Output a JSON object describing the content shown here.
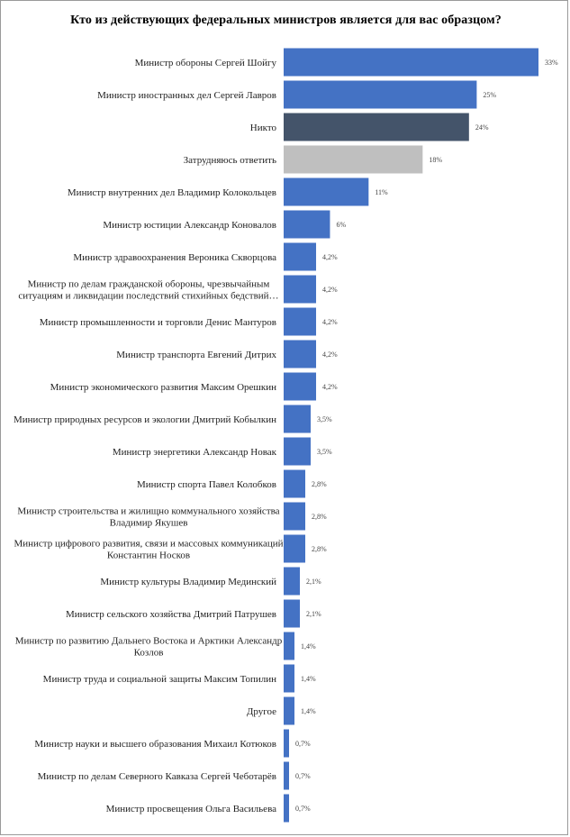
{
  "chart_data": {
    "type": "bar",
    "orientation": "horizontal",
    "title": "Кто из действующих федеральных министров является для вас образцом?",
    "xlabel": "",
    "ylabel": "",
    "xlim": [
      0,
      33
    ],
    "grid": false,
    "legend": "none",
    "colors": {
      "default": "#4472C4",
      "Никто": "#44546A",
      "Затрудняюсь ответить": "#BFBFBF"
    },
    "categories": [
      "Министр обороны Сергей Шойгу",
      "Министр иностранных дел Сергей Лавров",
      "Никто",
      "Затрудняюсь ответить",
      "Министр внутренних дел Владимир Колокольцев",
      "Министр юстиции Александр Коновалов",
      "Министр здравоохранения Вероника Скворцова",
      [
        "Министр по делам гражданской обороны, чрезвычайным",
        "ситуациям и ликвидации последствий стихийных бедствий…"
      ],
      "Министр промышленности и торговли Денис Мантуров",
      "Министр транспорта Евгений Дитрих",
      "Министр экономического развития Максим Орешкин",
      "Министр природных ресурсов и экологии Дмитрий Кобылкин",
      "Министр энергетики Александр Новак",
      "Министр спорта Павел Колобков",
      [
        "Министр строительства и жилищно коммунального хозяйства",
        "Владимир Якушев"
      ],
      [
        "Министр цифрового развития, связи и массовых коммуникаций",
        "Константин Носков"
      ],
      "Министр культуры Владимир Мединский",
      "Министр сельского хозяйства Дмитрий Патрушев",
      [
        "Министр по развитию Дальнего Востока и Арктики Александр",
        "Козлов"
      ],
      "Министр труда и социальной защиты Максим Топилин",
      "Другое",
      "Министр науки и высшего образования Михаил Котюков",
      "Министр по делам Северного Кавказа Сергей Чеботарёв",
      "Министр просвещения Ольга Васильева"
    ],
    "values": [
      33,
      25,
      24,
      18,
      11,
      6,
      4.2,
      4.2,
      4.2,
      4.2,
      4.2,
      3.5,
      3.5,
      2.8,
      2.8,
      2.8,
      2.1,
      2.1,
      1.4,
      1.4,
      1.4,
      0.7,
      0.7,
      0.7
    ],
    "data_labels": [
      "33%",
      "25%",
      "24%",
      "18%",
      "11%",
      "6%",
      "4,2%",
      "4,2%",
      "4,2%",
      "4,2%",
      "4,2%",
      "3,5%",
      "3,5%",
      "2,8%",
      "2,8%",
      "2,8%",
      "2,1%",
      "2,1%",
      "1,4%",
      "1,4%",
      "1,4%",
      "0,7%",
      "0,7%",
      "0,7%"
    ]
  }
}
